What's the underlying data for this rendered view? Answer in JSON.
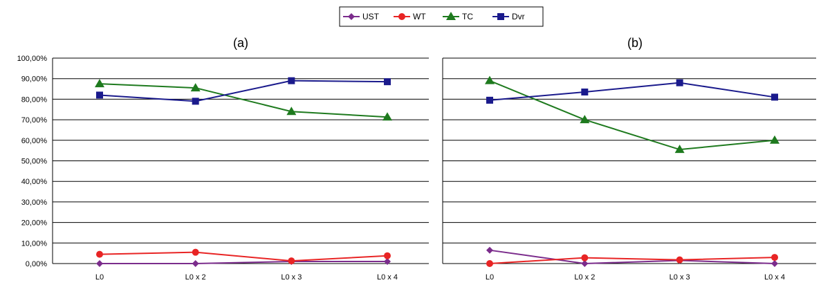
{
  "legend": {
    "items": [
      {
        "name": "UST",
        "color": "#7B2C8C",
        "marker": "diamond"
      },
      {
        "name": "WT",
        "color": "#E82424",
        "marker": "circle"
      },
      {
        "name": "TC",
        "color": "#1E7A1E",
        "marker": "triangle"
      },
      {
        "name": "Dvr",
        "color": "#1A1A8C",
        "marker": "square"
      }
    ]
  },
  "chart_data": [
    {
      "type": "line",
      "title": "(a)",
      "categories": [
        "L0",
        "L0 x 2",
        "L0 x 3",
        "L0 x 4"
      ],
      "ylim": [
        0,
        1.0
      ],
      "y_ticks": [
        "0,00%",
        "10,00%",
        "20,00%",
        "30,00%",
        "40,00%",
        "50,00%",
        "60,00%",
        "70,00%",
        "80,00%",
        "90,00%",
        "100,00%"
      ],
      "grid": true,
      "legend_position": "top-center",
      "series": [
        {
          "name": "UST",
          "values": [
            0.0,
            0.0,
            0.01,
            0.01
          ]
        },
        {
          "name": "WT",
          "values": [
            0.045,
            0.055,
            0.013,
            0.038
          ]
        },
        {
          "name": "TC",
          "values": [
            0.875,
            0.855,
            0.74,
            0.713
          ]
        },
        {
          "name": "Dvr",
          "values": [
            0.82,
            0.79,
            0.89,
            0.885
          ]
        }
      ]
    },
    {
      "type": "line",
      "title": "(b)",
      "categories": [
        "L0",
        "L0 x 2",
        "L0 x 3",
        "L0 x 4"
      ],
      "ylim": [
        0,
        1.0
      ],
      "y_ticks": [],
      "grid": true,
      "series": [
        {
          "name": "UST",
          "values": [
            0.065,
            0.0,
            0.015,
            0.0
          ]
        },
        {
          "name": "WT",
          "values": [
            0.0,
            0.028,
            0.018,
            0.03
          ]
        },
        {
          "name": "TC",
          "values": [
            0.89,
            0.7,
            0.555,
            0.6
          ]
        },
        {
          "name": "Dvr",
          "values": [
            0.795,
            0.835,
            0.88,
            0.81
          ]
        }
      ]
    }
  ]
}
